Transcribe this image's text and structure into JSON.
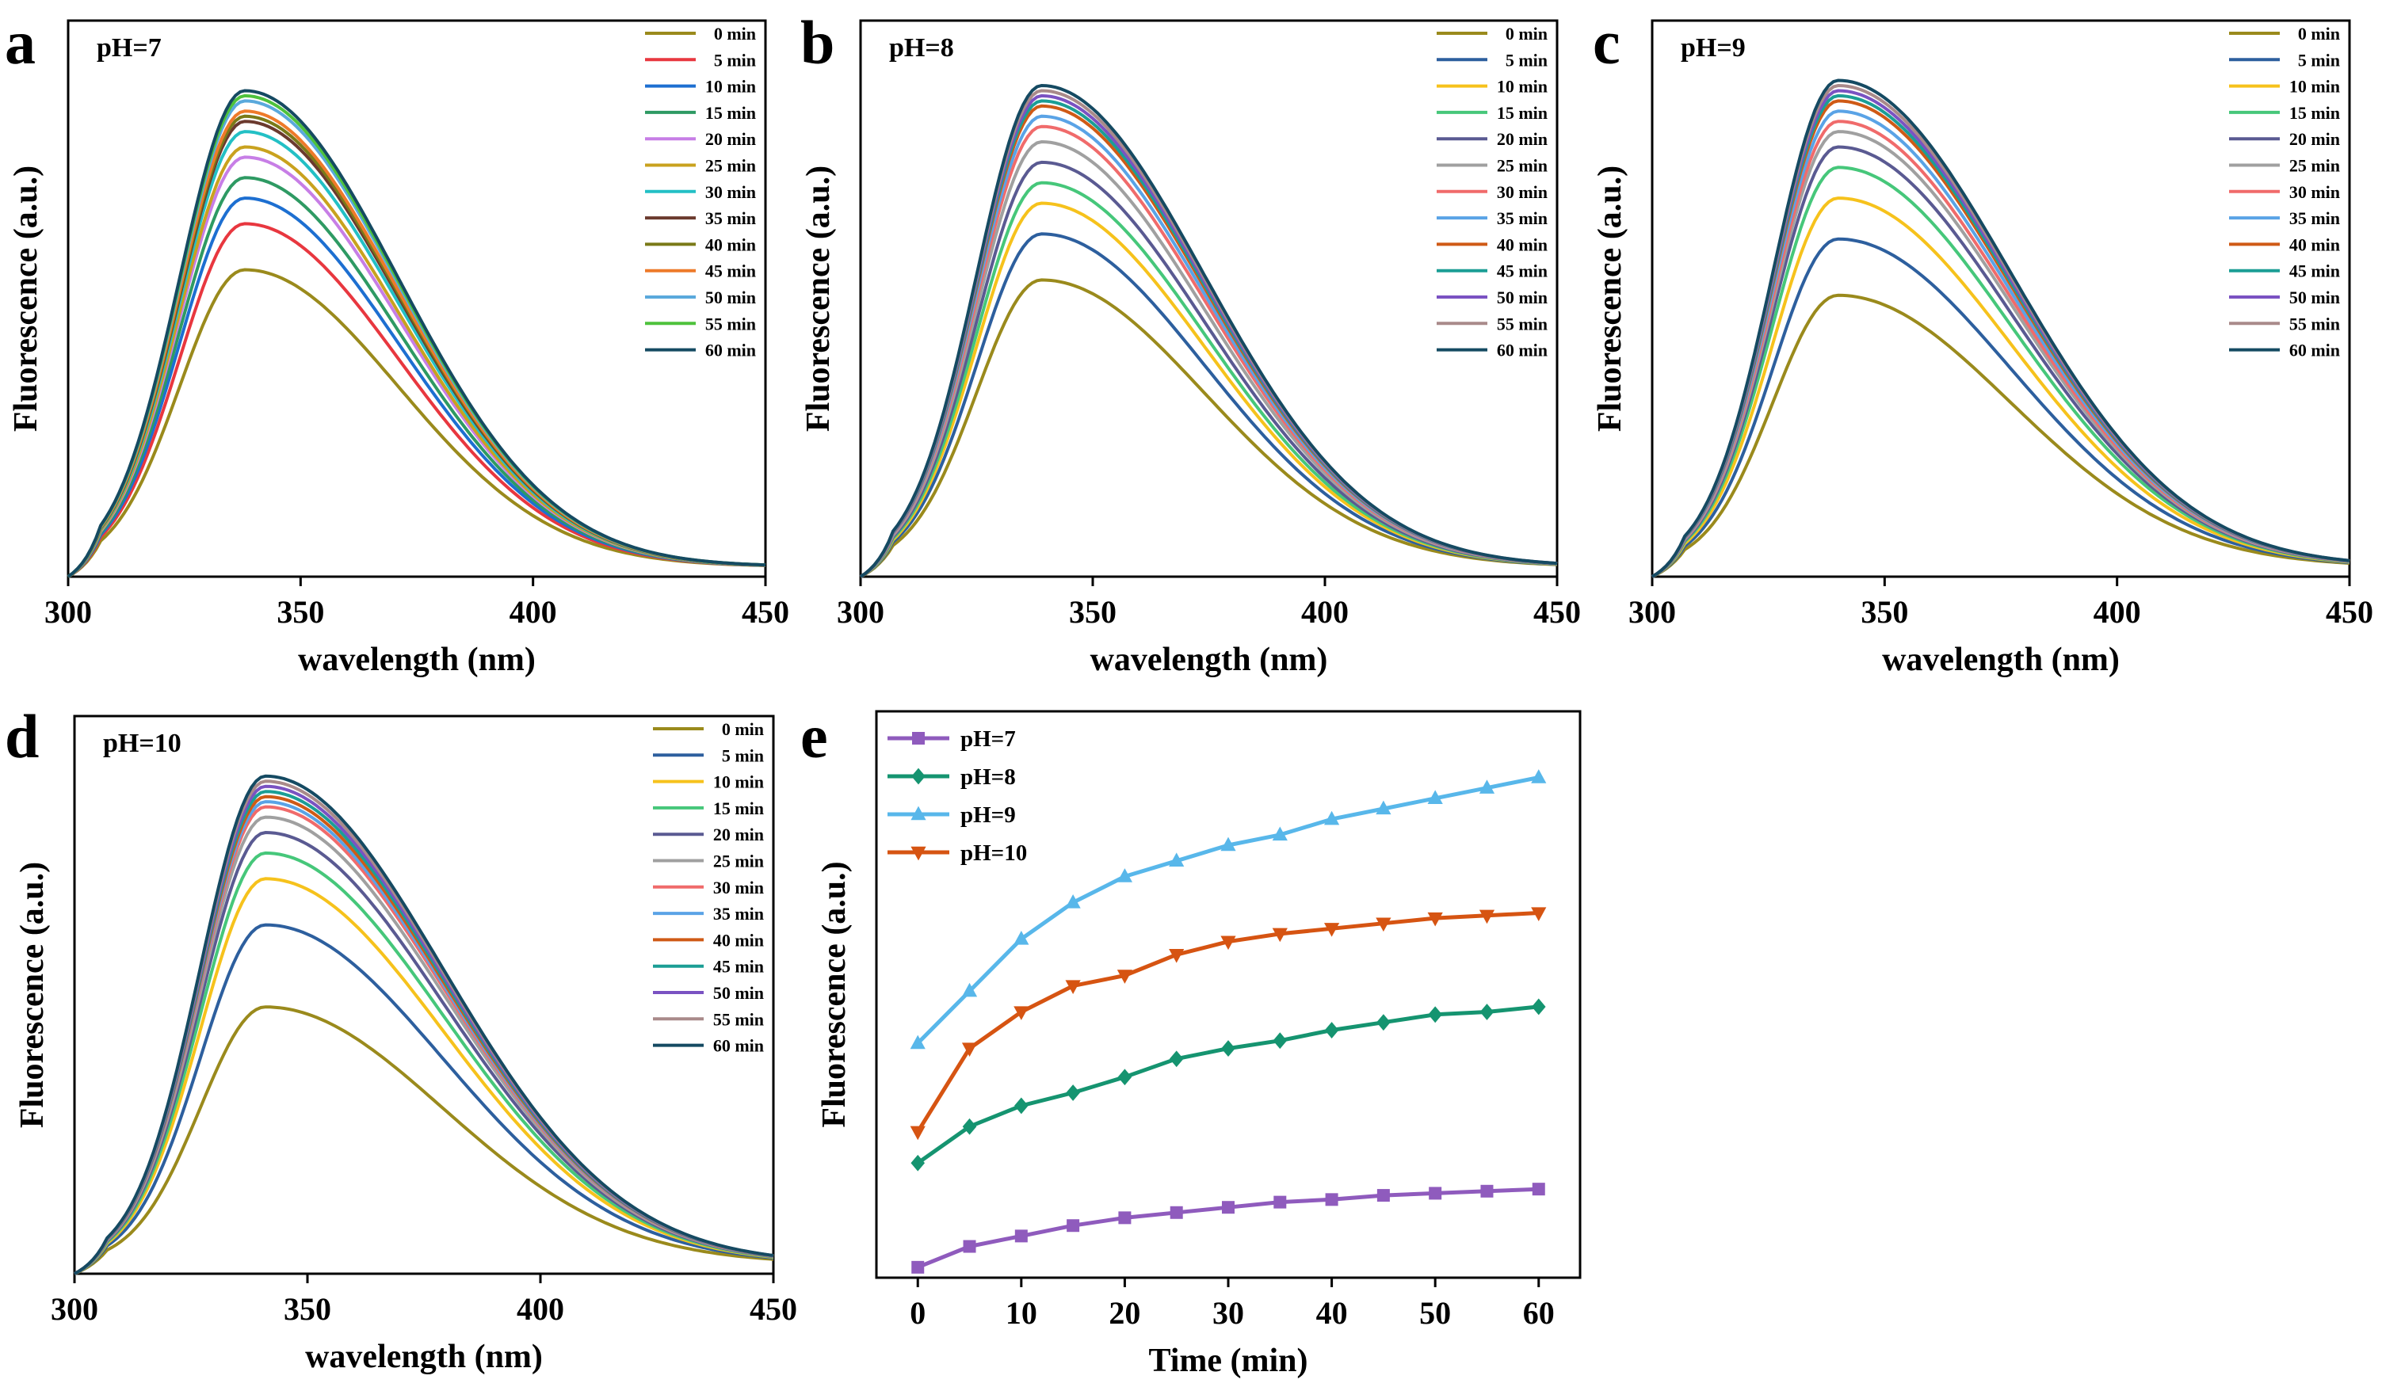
{
  "chart_data": [
    {
      "panel": "a",
      "type": "line",
      "title": "pH=7",
      "xlabel": "wavelength (nm)",
      "ylabel": "Fluorescence (a.u.)",
      "xlim": [
        300,
        450
      ],
      "ylim": [
        0,
        1
      ],
      "xticks": [
        "300",
        "350",
        "400",
        "450"
      ],
      "peak_wavelength_nm": 338,
      "baseline": 0.02,
      "rise_width_nm": 14,
      "tail_width_nm": 33,
      "legend_position": "top-right",
      "series": [
        {
          "name": "0 min",
          "color": "#9a8a1c",
          "peak": 0.6
        },
        {
          "name": "5 min",
          "color": "#e8373f",
          "peak": 0.69
        },
        {
          "name": "10 min",
          "color": "#1d6fd1",
          "peak": 0.74
        },
        {
          "name": "15 min",
          "color": "#2e9a63",
          "peak": 0.78
        },
        {
          "name": "20 min",
          "color": "#c77ee6",
          "peak": 0.82
        },
        {
          "name": "25 min",
          "color": "#c9a21e",
          "peak": 0.84
        },
        {
          "name": "30 min",
          "color": "#23c0c5",
          "peak": 0.87
        },
        {
          "name": "35 min",
          "color": "#6b3a2e",
          "peak": 0.89
        },
        {
          "name": "40 min",
          "color": "#7a7a18",
          "peak": 0.9
        },
        {
          "name": "45 min",
          "color": "#ee7a2a",
          "peak": 0.91
        },
        {
          "name": "50 min",
          "color": "#5aa9dc",
          "peak": 0.93
        },
        {
          "name": "55 min",
          "color": "#4ec23c",
          "peak": 0.94
        },
        {
          "name": "60 min",
          "color": "#154a62",
          "peak": 0.95
        }
      ]
    },
    {
      "panel": "b",
      "type": "line",
      "title": "pH=8",
      "xlabel": "wavelength (nm)",
      "ylabel": "Fluorescence (a.u.)",
      "xlim": [
        300,
        450
      ],
      "ylim": [
        0,
        1
      ],
      "xticks": [
        "300",
        "350",
        "400",
        "450"
      ],
      "peak_wavelength_nm": 339,
      "baseline": 0.02,
      "rise_width_nm": 14,
      "tail_width_nm": 35,
      "legend_position": "top-right",
      "series": [
        {
          "name": "0 min",
          "color": "#9a8a1c",
          "peak": 0.58
        },
        {
          "name": "5 min",
          "color": "#2d5f9e",
          "peak": 0.67
        },
        {
          "name": "10 min",
          "color": "#f6c21c",
          "peak": 0.73
        },
        {
          "name": "15 min",
          "color": "#46c77a",
          "peak": 0.77
        },
        {
          "name": "20 min",
          "color": "#5a5a92",
          "peak": 0.81
        },
        {
          "name": "25 min",
          "color": "#a0a0a0",
          "peak": 0.85
        },
        {
          "name": "30 min",
          "color": "#f06b6b",
          "peak": 0.88
        },
        {
          "name": "35 min",
          "color": "#5aa3e6",
          "peak": 0.9
        },
        {
          "name": "40 min",
          "color": "#cf5a16",
          "peak": 0.92
        },
        {
          "name": "45 min",
          "color": "#1b9e95",
          "peak": 0.93
        },
        {
          "name": "50 min",
          "color": "#7a52c2",
          "peak": 0.94
        },
        {
          "name": "55 min",
          "color": "#a98a8a",
          "peak": 0.95
        },
        {
          "name": "60 min",
          "color": "#154a62",
          "peak": 0.96
        }
      ]
    },
    {
      "panel": "c",
      "type": "line",
      "title": "pH=9",
      "xlabel": "wavelength (nm)",
      "ylabel": "Fluorescence (a.u.)",
      "xlim": [
        300,
        450
      ],
      "ylim": [
        0,
        1
      ],
      "xticks": [
        "300",
        "350",
        "400",
        "450"
      ],
      "peak_wavelength_nm": 340,
      "baseline": 0.02,
      "rise_width_nm": 14,
      "tail_width_nm": 37,
      "legend_position": "top-right",
      "series": [
        {
          "name": "0 min",
          "color": "#9a8a1c",
          "peak": 0.55
        },
        {
          "name": "5 min",
          "color": "#2d5f9e",
          "peak": 0.66
        },
        {
          "name": "10 min",
          "color": "#f6c21c",
          "peak": 0.74
        },
        {
          "name": "15 min",
          "color": "#46c77a",
          "peak": 0.8
        },
        {
          "name": "20 min",
          "color": "#5a5a92",
          "peak": 0.84
        },
        {
          "name": "25 min",
          "color": "#a0a0a0",
          "peak": 0.87
        },
        {
          "name": "30 min",
          "color": "#f06b6b",
          "peak": 0.89
        },
        {
          "name": "35 min",
          "color": "#5aa3e6",
          "peak": 0.91
        },
        {
          "name": "40 min",
          "color": "#cf5a16",
          "peak": 0.93
        },
        {
          "name": "45 min",
          "color": "#1b9e95",
          "peak": 0.94
        },
        {
          "name": "50 min",
          "color": "#7a52c2",
          "peak": 0.95
        },
        {
          "name": "55 min",
          "color": "#a98a8a",
          "peak": 0.96
        },
        {
          "name": "60 min",
          "color": "#154a62",
          "peak": 0.97
        }
      ]
    },
    {
      "panel": "d",
      "type": "line",
      "title": "pH=10",
      "xlabel": "wavelength (nm)",
      "ylabel": "Fluorescence (a.u.)",
      "xlim": [
        300,
        450
      ],
      "ylim": [
        0,
        1
      ],
      "xticks": [
        "300",
        "350",
        "400",
        "450"
      ],
      "peak_wavelength_nm": 341,
      "baseline": 0.02,
      "rise_width_nm": 14,
      "tail_width_nm": 38,
      "legend_position": "top-right",
      "series": [
        {
          "name": "0 min",
          "color": "#9a8a1c",
          "peak": 0.52
        },
        {
          "name": "5 min",
          "color": "#2d5f9e",
          "peak": 0.68
        },
        {
          "name": "10 min",
          "color": "#f6c21c",
          "peak": 0.77
        },
        {
          "name": "15 min",
          "color": "#46c77a",
          "peak": 0.82
        },
        {
          "name": "20 min",
          "color": "#5a5a92",
          "peak": 0.86
        },
        {
          "name": "25 min",
          "color": "#a0a0a0",
          "peak": 0.89
        },
        {
          "name": "30 min",
          "color": "#f06b6b",
          "peak": 0.91
        },
        {
          "name": "35 min",
          "color": "#5aa3e6",
          "peak": 0.92
        },
        {
          "name": "40 min",
          "color": "#cf5a16",
          "peak": 0.93
        },
        {
          "name": "45 min",
          "color": "#1b9e95",
          "peak": 0.94
        },
        {
          "name": "50 min",
          "color": "#7a52c2",
          "peak": 0.95
        },
        {
          "name": "55 min",
          "color": "#a98a8a",
          "peak": 0.96
        },
        {
          "name": "60 min",
          "color": "#154a62",
          "peak": 0.97
        }
      ]
    },
    {
      "panel": "e",
      "type": "line",
      "title": "",
      "xlabel": "Time (min)",
      "ylabel": "Fluorescence (a.u.)",
      "xlim": [
        -4,
        64
      ],
      "ylim": [
        0,
        1
      ],
      "x": [
        0,
        5,
        10,
        15,
        20,
        25,
        30,
        35,
        40,
        45,
        50,
        55,
        60
      ],
      "xticks": [
        "0",
        "10",
        "20",
        "30",
        "40",
        "50",
        "60"
      ],
      "legend_position": "top-left",
      "series": [
        {
          "name": "pH=7",
          "color": "#8f5bbd",
          "marker": "square",
          "values": [
            0.02,
            0.06,
            0.08,
            0.1,
            0.115,
            0.125,
            0.135,
            0.145,
            0.15,
            0.158,
            0.162,
            0.166,
            0.17
          ]
        },
        {
          "name": "pH=8",
          "color": "#159470",
          "marker": "diamond",
          "values": [
            0.22,
            0.29,
            0.33,
            0.355,
            0.385,
            0.42,
            0.44,
            0.455,
            0.475,
            0.49,
            0.505,
            0.51,
            0.52
          ]
        },
        {
          "name": "pH=9",
          "color": "#58b7ea",
          "marker": "triangle-up",
          "values": [
            0.45,
            0.55,
            0.65,
            0.72,
            0.77,
            0.8,
            0.83,
            0.85,
            0.88,
            0.9,
            0.92,
            0.94,
            0.96
          ]
        },
        {
          "name": "pH=10",
          "color": "#d65412",
          "marker": "triangle-down",
          "values": [
            0.28,
            0.44,
            0.51,
            0.56,
            0.58,
            0.62,
            0.645,
            0.66,
            0.67,
            0.68,
            0.69,
            0.695,
            0.7
          ]
        }
      ]
    }
  ]
}
